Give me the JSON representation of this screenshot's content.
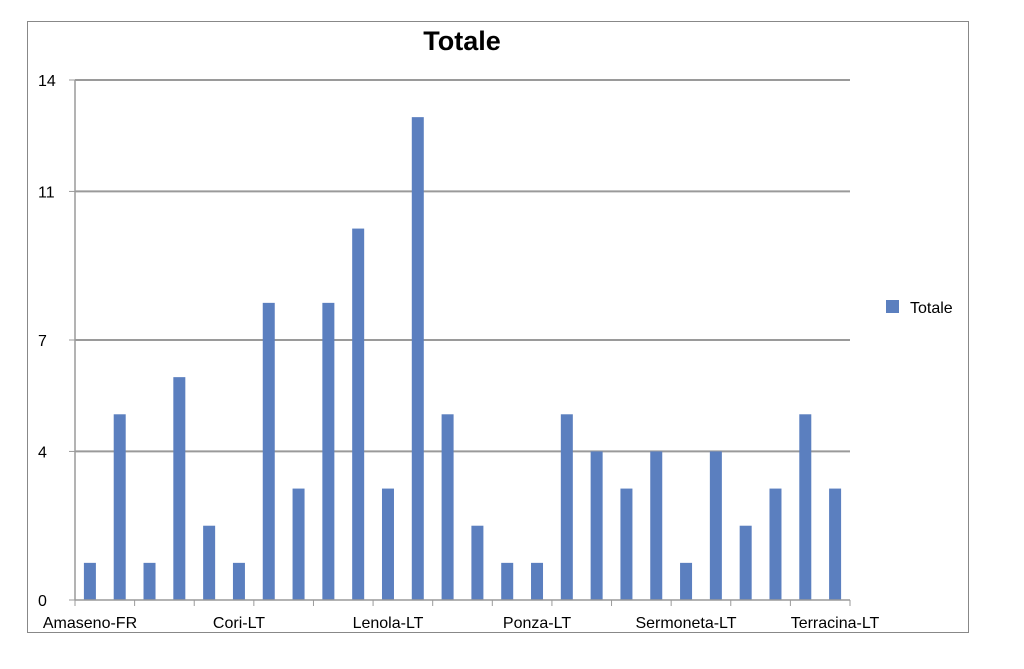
{
  "chart_data": {
    "type": "bar",
    "title": "Totale",
    "xlabel": "",
    "ylabel": "",
    "ylim": [
      0,
      14
    ],
    "y_ticks": [
      "0",
      "4",
      "7",
      "11",
      "14"
    ],
    "x_tick_labels": [
      "Amaseno-FR",
      "Cori-LT",
      "Lenola-LT",
      "Ponza-LT",
      "Sermoneta-LT",
      "Terracina-LT"
    ],
    "grid": true,
    "legend_position": "right",
    "series": [
      {
        "name": "Totale",
        "color": "#5b7fbf",
        "values": [
          1,
          5,
          1,
          6,
          2,
          1,
          8,
          3,
          8,
          10,
          3,
          13,
          5,
          2,
          1,
          1,
          5,
          4,
          3,
          4,
          1,
          4,
          2,
          3,
          5,
          3
        ]
      }
    ]
  }
}
